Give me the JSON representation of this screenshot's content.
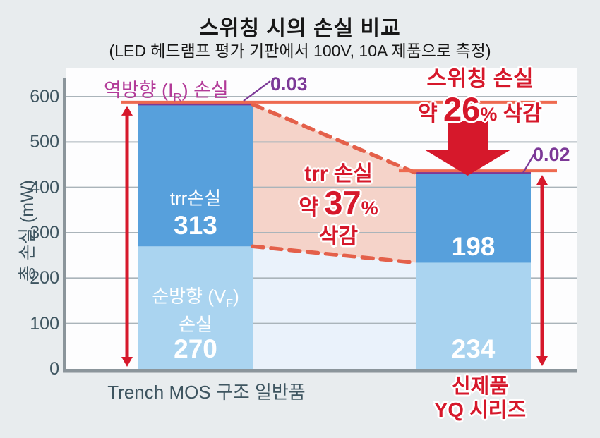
{
  "title": "스위칭 시의 손실 비교",
  "subtitle": "(LED 헤드램프 평가 기판에서 100V, 10A 제품으로 측정)",
  "y_axis": {
    "label": "총 손실 (mW)"
  },
  "chart_data": {
    "type": "bar",
    "stacked": true,
    "title": "스위칭 시의 손실 비교",
    "subtitle": "(LED 헤드램프 평가 기판에서 100V, 10A 제품으로 측정)",
    "categories": [
      "Trench MOS 구조 일반품",
      "신제품 YQ 시리즈"
    ],
    "series": [
      {
        "name": "순방향 (VF) 손실",
        "values": [
          270,
          234
        ]
      },
      {
        "name": "trr손실",
        "values": [
          313,
          198
        ]
      },
      {
        "name": "역방향 (IR) 손실",
        "values": [
          0.03,
          0.02
        ]
      }
    ],
    "totals": [
      583,
      432
    ],
    "ylabel": "총 손실 (mW)",
    "ylim": [
      0,
      600
    ],
    "yticks": [
      600,
      500,
      400,
      300,
      200,
      100,
      0
    ],
    "grid": true,
    "annotations": [
      "trr 손실 약 37% 삭감",
      "스위칭 손실 약 26% 삭감",
      "역방향 (IR) 손실 0.03 → 0.02"
    ]
  },
  "annotations": {
    "reverse_loss_prefix": "역방향 (I",
    "reverse_loss_sub": "R",
    "reverse_loss_suffix": ") 손실",
    "reverse_loss_left_value": "0.03",
    "reverse_loss_right_value": "0.02",
    "switching_line1": "스위칭 손실",
    "switching_about": "약",
    "switching_value": "26",
    "switching_pct": "%",
    "switching_cut": "삭감",
    "trr_line1": "trr 손실",
    "trr_about": "약",
    "trr_value": "37",
    "trr_pct": "%",
    "trr_cut": "삭감"
  },
  "bar_labels": {
    "left_trr_caption": "trr손실",
    "left_trr_value": "313",
    "left_vf_prefix": "순방향 (V",
    "left_vf_sub": "F",
    "left_vf_suffix": ")",
    "left_vf_line2": "손실",
    "left_vf_value": "270",
    "right_trr_value": "198",
    "right_vf_value": "234"
  },
  "x_labels": {
    "left": "Trench MOS 구조 일반품",
    "right_line1": "신제품",
    "right_line2": "YQ 시리즈"
  },
  "colors": {
    "background": "#e8ecee",
    "plot_bg": "#fdfdfe",
    "trr_fill": "#57a0dc",
    "vf_fill": "#aad4f0",
    "pink_band": "#f5d3c9",
    "pale_band": "#eaf2fb",
    "dashed_line": "#e4604a",
    "level_line": "#ee6a50",
    "purple_line": "#7c3997",
    "magenta_text": "#b23a98",
    "red": "#d6182b",
    "axis_text": "#3e5560",
    "grid_line": "#aab4ba",
    "axis_line": "#8b959b"
  }
}
